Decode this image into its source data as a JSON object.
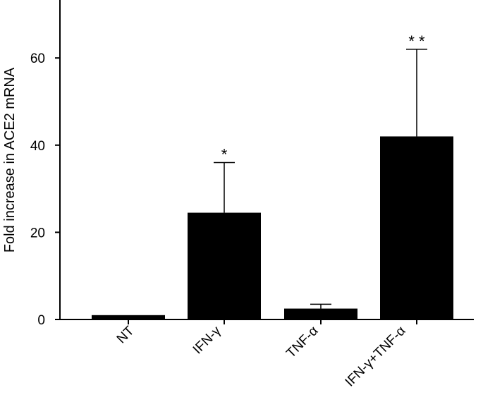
{
  "chart_data": {
    "type": "bar",
    "categories": [
      "NT",
      "IFN-γ",
      "TNF-α",
      "IFN-γ+TNF-α"
    ],
    "values": [
      1,
      24.5,
      2.5,
      42
    ],
    "error_upper": [
      1,
      36,
      3.5,
      62
    ],
    "significance": [
      "",
      "*",
      "",
      "* *"
    ],
    "ylabel": "Fold increase in ACE2 mRNA",
    "xlabel": "",
    "yticks": [
      0,
      20,
      40,
      60
    ],
    "ylim": [
      0,
      72
    ],
    "grid": false,
    "bar_color": "#000000"
  }
}
